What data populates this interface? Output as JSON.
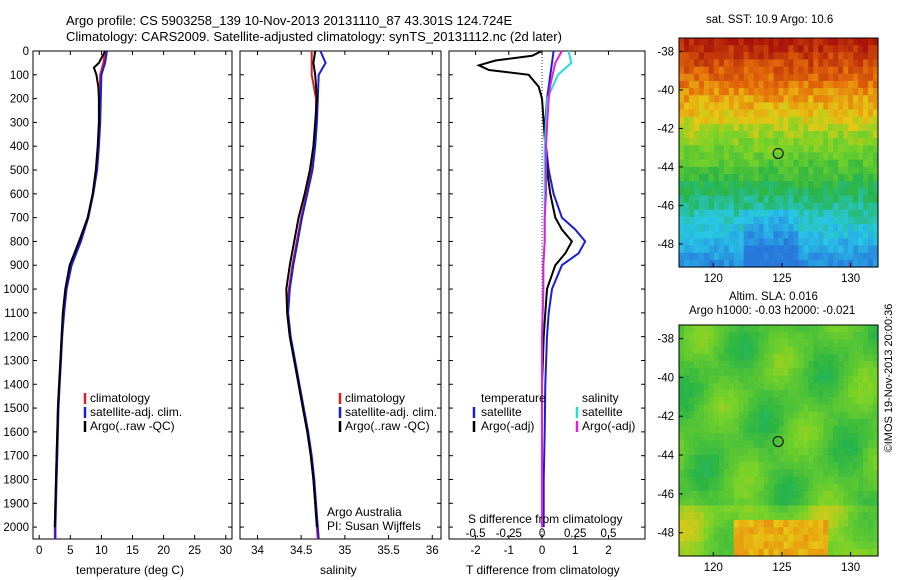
{
  "header": {
    "title_line1": "Argo profile: CS 5903258_139 10-Nov-2013 20131110_87 43.301S 124.724E",
    "title_line2": "Climatology: CARS2009. Satellite-adjusted climatology: synTS_20131112.nc (2d later)"
  },
  "map_top": {
    "title": "sat. SST: 10.9  Argo: 10.6",
    "y_ticks": [
      "-38",
      "-40",
      "-42",
      "-44",
      "-46",
      "-48"
    ],
    "x_ticks": [
      "120",
      "125",
      "130"
    ]
  },
  "map_bottom": {
    "title_line1": "Altim. SLA: 0.016",
    "title_line2": "Argo h1000: -0.03 h2000: -0.021",
    "y_ticks": [
      "-38",
      "-40",
      "-42",
      "-44",
      "-46",
      "-48"
    ],
    "x_ticks": [
      "120",
      "125",
      "130"
    ]
  },
  "side_label": "©IMOS 19-Nov-2013 20:00:36",
  "colors": {
    "climatology": "#e02020",
    "satellite": "#1c1cd6",
    "argo": "#000000",
    "sat_salinity": "#22dddd",
    "argo_salinity": "#e020e0"
  },
  "chart_data": [
    {
      "type": "line",
      "panel": "temperature",
      "xlabel": "temperature (deg C)",
      "ylabel": "",
      "xlim": [
        -1,
        31
      ],
      "ylim": [
        0,
        2050
      ],
      "x_ticks": [
        "0",
        "5",
        "10",
        "15",
        "20",
        "25",
        "30"
      ],
      "y_ticks": [
        "0",
        "100",
        "200",
        "300",
        "400",
        "500",
        "600",
        "700",
        "800",
        "900",
        "1000",
        "1100",
        "1200",
        "1300",
        "1400",
        "1500",
        "1600",
        "1700",
        "1800",
        "1900",
        "2000"
      ],
      "legend": [
        "climatology",
        "satellite-adj. clim.",
        "Argo(..raw -QC)"
      ],
      "series": [
        {
          "name": "climatology",
          "depth": [
            0,
            50,
            100,
            200,
            300,
            400,
            500,
            600,
            700,
            800,
            900,
            1000,
            1100,
            1200,
            1300,
            1400,
            1500,
            1600,
            1700,
            1800,
            1900,
            2000,
            2050
          ],
          "values": [
            10.6,
            10.3,
            9.8,
            9.7,
            9.7,
            9.5,
            9.2,
            8.6,
            7.8,
            6.5,
            5.0,
            4.3,
            3.9,
            3.6,
            3.4,
            3.2,
            3.0,
            2.9,
            2.8,
            2.7,
            2.6,
            2.5,
            2.5
          ]
        },
        {
          "name": "satellite-adj. clim.",
          "depth": [
            0,
            50,
            100,
            200,
            300,
            400,
            500,
            600,
            700,
            800,
            900,
            1000,
            1100,
            1200,
            1300,
            1400,
            1500,
            1600,
            1700,
            1800,
            1900,
            2000,
            2050
          ],
          "values": [
            10.9,
            10.6,
            10.0,
            9.9,
            9.8,
            9.6,
            9.3,
            8.7,
            7.9,
            6.7,
            5.2,
            4.4,
            4.0,
            3.7,
            3.5,
            3.3,
            3.1,
            3.0,
            2.9,
            2.8,
            2.7,
            2.6,
            2.6
          ]
        },
        {
          "name": "Argo",
          "depth": [
            0,
            20,
            50,
            70,
            100,
            150,
            200,
            300,
            400,
            500,
            600,
            700,
            800,
            900,
            1000,
            1100,
            1200,
            1300,
            1400,
            1500,
            1600,
            1700,
            1800,
            1900,
            2000
          ],
          "values": [
            10.6,
            10.2,
            9.6,
            8.8,
            9.2,
            9.5,
            9.6,
            9.6,
            9.4,
            9.1,
            8.6,
            7.8,
            6.4,
            4.9,
            4.2,
            3.8,
            3.6,
            3.4,
            3.2,
            3.0,
            2.9,
            2.8,
            2.7,
            2.6,
            2.5
          ]
        }
      ]
    },
    {
      "type": "line",
      "panel": "salinity",
      "xlabel": "salinity",
      "xlim": [
        33.8,
        36.1
      ],
      "ylim": [
        0,
        2050
      ],
      "x_ticks": [
        "34",
        "34.5",
        "35",
        "35.5",
        "36"
      ],
      "legend": [
        "climatology",
        "satellite-adj. clim.",
        "Argo(..raw -QC)"
      ],
      "annotation_line1": "Argo Australia",
      "annotation_line2": "PI: Susan Wijffels",
      "series": [
        {
          "name": "climatology",
          "depth": [
            0,
            100,
            200,
            300,
            400,
            500,
            600,
            700,
            800,
            900,
            1000,
            1100,
            1200,
            1300,
            1400,
            1500,
            1600,
            1700,
            1800,
            1900,
            2000,
            2050
          ],
          "values": [
            34.62,
            34.62,
            34.67,
            34.67,
            34.65,
            34.62,
            34.56,
            34.5,
            34.45,
            34.4,
            34.36,
            34.34,
            34.37,
            34.42,
            34.47,
            34.52,
            34.57,
            34.61,
            34.64,
            34.66,
            34.68,
            34.69
          ]
        },
        {
          "name": "satellite-adj. clim.",
          "depth": [
            0,
            50,
            100,
            200,
            300,
            400,
            500,
            600,
            700,
            800,
            900,
            1000,
            1100,
            1200,
            1300,
            1400,
            1500,
            1600,
            1700,
            1800,
            1900,
            2000,
            2050
          ],
          "values": [
            34.72,
            34.78,
            34.7,
            34.69,
            34.68,
            34.66,
            34.63,
            34.57,
            34.51,
            34.46,
            34.41,
            34.37,
            34.35,
            34.38,
            34.43,
            34.48,
            34.53,
            34.58,
            34.62,
            34.65,
            34.67,
            34.69,
            34.7
          ]
        },
        {
          "name": "Argo",
          "depth": [
            0,
            50,
            100,
            200,
            300,
            400,
            500,
            600,
            700,
            800,
            900,
            1000,
            1100,
            1200,
            1300,
            1400,
            1500,
            1600,
            1700,
            1800,
            1900,
            2000
          ],
          "values": [
            34.66,
            34.64,
            34.66,
            34.68,
            34.66,
            34.64,
            34.6,
            34.54,
            34.47,
            34.42,
            34.37,
            34.33,
            34.34,
            34.37,
            34.42,
            34.47,
            34.52,
            34.57,
            34.61,
            34.64,
            34.66,
            34.68
          ]
        }
      ]
    },
    {
      "type": "line",
      "panel": "difference",
      "xlabel": "T difference from climatology",
      "xlabel_top": "S difference from climatology",
      "xlim": [
        -2.8,
        3.1
      ],
      "ylim": [
        0,
        2050
      ],
      "x_ticks": [
        "-2",
        "-1",
        "0",
        "1",
        "2"
      ],
      "x_ticks_top": [
        "-0.5",
        "-0.25",
        "0",
        "0.25",
        "0.5"
      ],
      "legend_temperature_title": "temperature",
      "legend_salinity_title": "salinity",
      "legend_satellite": "satellite",
      "legend_argo": "Argo(-adj)",
      "series": [
        {
          "name": "temperature satellite",
          "depth": [
            0,
            50,
            100,
            150,
            200,
            300,
            400,
            500,
            600,
            700,
            750,
            800,
            850,
            900,
            1000,
            1100,
            1200,
            1400,
            1600,
            1800,
            2000
          ],
          "values": [
            0.35,
            0.3,
            0.25,
            0.2,
            0.15,
            0.1,
            0.12,
            0.2,
            0.35,
            0.6,
            1.0,
            1.3,
            1.1,
            0.6,
            0.3,
            0.2,
            0.15,
            0.1,
            0.08,
            0.05,
            0.05
          ]
        },
        {
          "name": "temperature Argo",
          "depth": [
            0,
            20,
            40,
            60,
            80,
            100,
            150,
            200,
            300,
            400,
            500,
            600,
            700,
            750,
            800,
            850,
            900,
            1000,
            1100,
            1200,
            1400,
            1600,
            1800,
            2000
          ],
          "values": [
            0.0,
            -0.3,
            -1.4,
            -1.9,
            -1.6,
            -0.4,
            -0.1,
            0.0,
            0.05,
            0.1,
            0.15,
            0.25,
            0.4,
            0.6,
            0.9,
            0.7,
            0.4,
            0.15,
            0.1,
            0.05,
            0.0,
            0.0,
            0.0,
            0.0
          ]
        },
        {
          "name": "salinity satellite",
          "depth": [
            0,
            50,
            100,
            150,
            200,
            300,
            400,
            500,
            600,
            700,
            800,
            900,
            1000,
            1200,
            1400,
            1600,
            1800,
            2000
          ],
          "values": [
            0.2,
            0.22,
            0.12,
            0.08,
            0.04,
            0.03,
            0.02,
            0.02,
            0.02,
            0.02,
            0.02,
            0.01,
            0.01,
            0.0,
            0.0,
            0.0,
            0.0,
            0.0
          ]
        },
        {
          "name": "salinity Argo",
          "depth": [
            0,
            50,
            100,
            150,
            200,
            300,
            400,
            500,
            600,
            700,
            800,
            900,
            1000,
            1200,
            1400,
            1600,
            1800,
            2000
          ],
          "values": [
            0.15,
            0.1,
            0.08,
            0.06,
            0.05,
            0.04,
            0.03,
            0.03,
            0.03,
            0.02,
            0.02,
            0.01,
            0.01,
            0.0,
            0.0,
            0.0,
            0.0,
            0.0
          ]
        }
      ]
    },
    {
      "type": "heatmap",
      "panel": "sst_map",
      "marker": {
        "lon": 124.724,
        "lat": -43.301
      },
      "xlim": [
        117.5,
        132
      ],
      "ylim": [
        -49.2,
        -37.3
      ]
    },
    {
      "type": "heatmap",
      "panel": "sla_map",
      "marker": {
        "lon": 124.724,
        "lat": -43.301
      },
      "xlim": [
        117.5,
        132
      ],
      "ylim": [
        -49.2,
        -37.3
      ]
    }
  ]
}
